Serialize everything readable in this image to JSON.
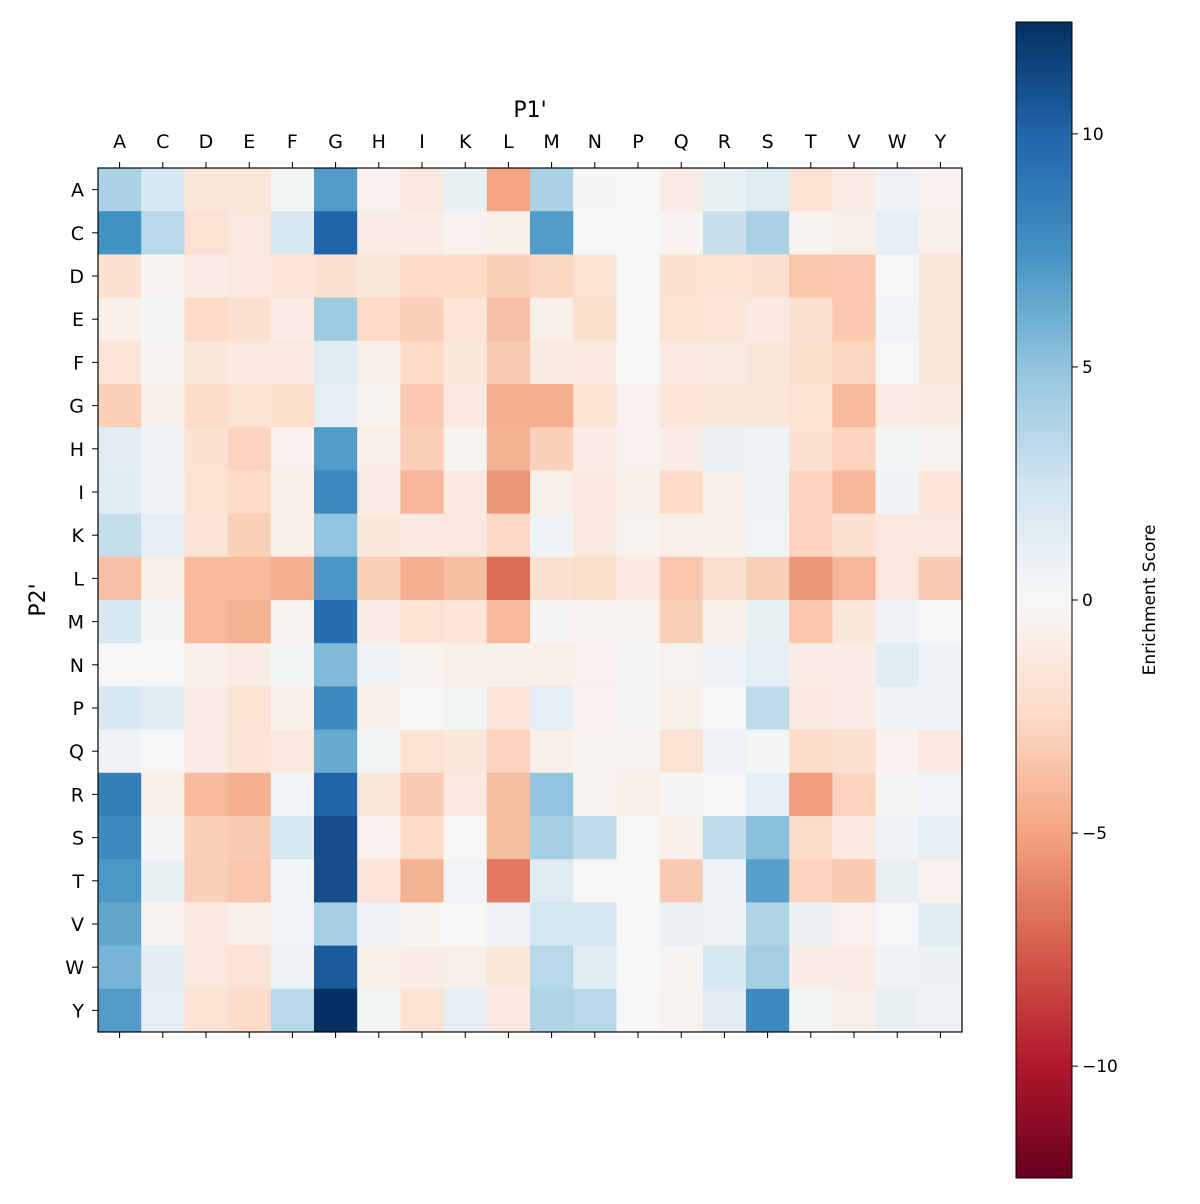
{
  "chart_data": {
    "type": "heatmap",
    "title": "",
    "xlabel": "P1'",
    "ylabel": "P2'",
    "x_categories": [
      "A",
      "C",
      "D",
      "E",
      "F",
      "G",
      "H",
      "I",
      "K",
      "L",
      "M",
      "N",
      "P",
      "Q",
      "R",
      "S",
      "T",
      "V",
      "W",
      "Y"
    ],
    "y_categories": [
      "A",
      "C",
      "D",
      "E",
      "F",
      "G",
      "H",
      "I",
      "K",
      "L",
      "M",
      "N",
      "P",
      "Q",
      "R",
      "S",
      "T",
      "V",
      "W",
      "Y"
    ],
    "colorbar": {
      "label": "Enrichment Score",
      "colormap": "RdBu",
      "range": [
        -12.4,
        12.4
      ],
      "ticks": [
        10,
        5,
        0,
        -5,
        -10
      ],
      "tick_labels": [
        "10",
        "5",
        "0",
        "−5",
        "−10"
      ]
    },
    "colormap_stops": [
      "#67001f",
      "#b2182b",
      "#d6604d",
      "#f4a582",
      "#fddbc7",
      "#f7f7f7",
      "#d1e5f0",
      "#92c5de",
      "#4393c3",
      "#2166ac",
      "#053061"
    ],
    "values": [
      [
        4,
        2,
        -1.5,
        -1.5,
        0.3,
        7,
        -0.5,
        -1.2,
        1,
        -5,
        4,
        -0.2,
        0,
        -1,
        1,
        1.5,
        -1.8,
        -1,
        0.5,
        -0.5
      ],
      [
        7.5,
        3.5,
        -1.8,
        -1.3,
        2,
        10,
        -1,
        -1,
        -0.5,
        -0.7,
        7,
        -0.1,
        0,
        -0.3,
        2.8,
        4,
        -0.4,
        -0.7,
        1.2,
        -0.8
      ],
      [
        -2,
        -0.3,
        -1,
        -1.2,
        -1.6,
        -2,
        -1.5,
        -2.5,
        -2.5,
        -3,
        -2.7,
        -1.8,
        0,
        -2,
        -1.8,
        -2,
        -3.5,
        -3.3,
        0.1,
        -1.5
      ],
      [
        -0.6,
        0.2,
        -2.5,
        -2,
        -1,
        4.5,
        -2.5,
        -3,
        -1.6,
        -3.7,
        -0.8,
        -2.2,
        0,
        -1.8,
        -1.6,
        -1.2,
        -2,
        -3.3,
        0.4,
        -1.5
      ],
      [
        -1.6,
        -0.3,
        -1.5,
        -1.2,
        -1.2,
        1.5,
        -0.8,
        -2.5,
        -1.4,
        -3.2,
        -1.1,
        -1.2,
        0.1,
        -1.2,
        -1.1,
        -1.4,
        -2.2,
        -2.7,
        0.1,
        -1.4
      ],
      [
        -3,
        -0.6,
        -2.3,
        -1.8,
        -2.2,
        1.1,
        -0.3,
        -3.3,
        -1.2,
        -4.5,
        -4.5,
        -1.8,
        -0.5,
        -1.6,
        -1.5,
        -1.5,
        -1.8,
        -4,
        -1,
        -1.1
      ],
      [
        1.4,
        0.5,
        -2,
        -2.8,
        -0.5,
        7,
        -0.8,
        -3,
        -0.3,
        -4.3,
        -3,
        -1,
        -0.5,
        -1,
        0.8,
        0.6,
        -2,
        -2.8,
        0.3,
        -0.4
      ],
      [
        1.5,
        0.5,
        -1.8,
        -2.5,
        -0.6,
        8,
        -1,
        -4.2,
        -1.2,
        -5.5,
        -0.7,
        -1.2,
        -0.6,
        -2.5,
        -0.6,
        0.6,
        -2.8,
        -4.2,
        0.5,
        -1.6
      ],
      [
        3,
        1.2,
        -1.7,
        -3,
        -0.8,
        5,
        -1.5,
        -1.2,
        -1.2,
        -2.6,
        0.5,
        -1.3,
        -0.4,
        -0.8,
        -0.6,
        0.4,
        -2.8,
        -2,
        -1.3,
        -1.3
      ],
      [
        -3.7,
        -0.7,
        -4,
        -4,
        -4.5,
        7.3,
        -3,
        -4.5,
        -3.8,
        -7,
        -2,
        -2.2,
        -1.2,
        -3.5,
        -2,
        -3,
        -5.5,
        -4.2,
        -1.3,
        -3.2
      ],
      [
        2,
        0.2,
        -4,
        -4.3,
        -0.4,
        9.5,
        -1,
        -1.8,
        -1.6,
        -4,
        -0.2,
        -0.4,
        -0.4,
        -3,
        -0.8,
        1,
        -3.5,
        -1.5,
        0.5,
        0.1
      ],
      [
        0.1,
        0.1,
        -0.8,
        -1,
        0.3,
        5.5,
        0.5,
        -0.4,
        -0.8,
        -0.6,
        -0.8,
        -0.5,
        0.2,
        -0.4,
        0.5,
        1.2,
        -1,
        -0.9,
        1.5,
        0.5
      ],
      [
        2,
        1.7,
        -0.9,
        -1.8,
        -0.6,
        8,
        -0.6,
        -0.1,
        0.3,
        -1.6,
        1.2,
        -0.5,
        0.2,
        -0.6,
        -0.1,
        3.2,
        -1.2,
        -1,
        0.6,
        0.5
      ],
      [
        0.5,
        0.1,
        -1,
        -1.7,
        -1.3,
        6.3,
        0.3,
        -1.8,
        -1.5,
        -2.8,
        -0.7,
        -0.4,
        -0.4,
        -1.8,
        0.5,
        0.2,
        -2.4,
        -2,
        -0.5,
        -1.2
      ],
      [
        8.5,
        -0.7,
        -4,
        -4.5,
        0.4,
        10,
        -1.5,
        -3.2,
        -1.2,
        -3.8,
        5,
        -0.4,
        -0.6,
        -0.2,
        0.1,
        1.2,
        -5.2,
        -2.8,
        -0.2,
        0.4
      ],
      [
        8,
        0.2,
        -3,
        -3.2,
        2,
        11,
        -0.5,
        -2.5,
        -0.1,
        -3.8,
        4.2,
        3.2,
        0,
        -0.6,
        3.2,
        5.2,
        -2.4,
        -1.2,
        0.6,
        1.2
      ],
      [
        7.2,
        1,
        -3,
        -3.4,
        0.4,
        11,
        -1.6,
        -4.3,
        0.4,
        -6.5,
        1.6,
        -0.1,
        0,
        -3.2,
        0.7,
        6.8,
        -2.8,
        -3.2,
        1,
        -0.5
      ],
      [
        6.5,
        -0.4,
        -1.2,
        -0.8,
        0.4,
        4.2,
        0.6,
        -0.3,
        0.1,
        0.5,
        2.2,
        2.2,
        0,
        0.8,
        0.5,
        3.8,
        0.8,
        -0.5,
        0.1,
        1.5
      ],
      [
        5.8,
        1.3,
        -1.3,
        -1.7,
        0.7,
        10.5,
        -0.6,
        -0.9,
        -0.7,
        -1.4,
        3.5,
        1.5,
        0,
        -0.3,
        2,
        4.3,
        -1,
        -1,
        0.5,
        0.8
      ],
      [
        7,
        1.2,
        -1.8,
        -2.3,
        3.5,
        12.4,
        0.3,
        -1.8,
        1.2,
        -1.2,
        3.8,
        3.5,
        0,
        -0.4,
        1.4,
        8,
        0.3,
        -0.7,
        1,
        0.5
      ]
    ],
    "grid": false,
    "legend": "colorbar-right"
  }
}
